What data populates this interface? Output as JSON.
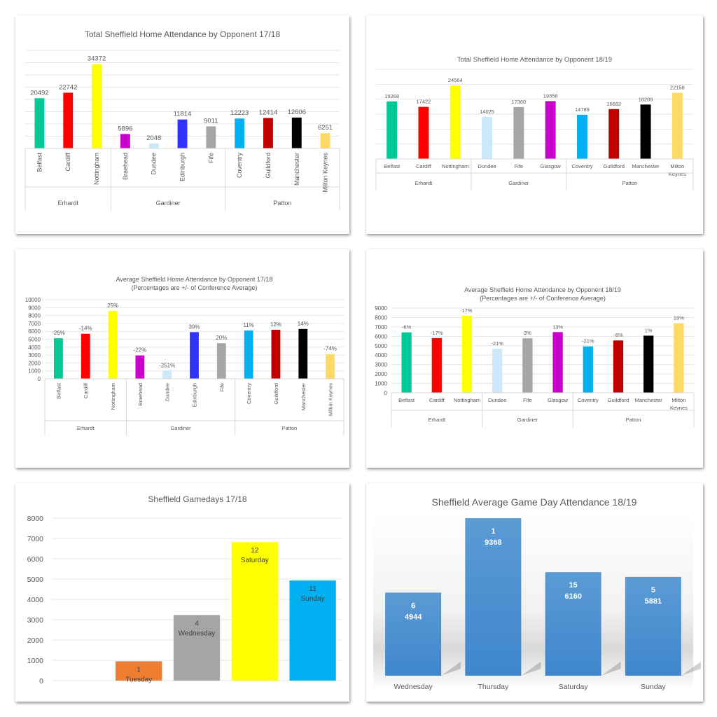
{
  "chart_data": [
    {
      "id": "total-1718",
      "type": "bar",
      "title": "Total Sheffield Home Attendance by Opponent 17/18",
      "subtitle": "",
      "xlabel": "",
      "ylabel": "",
      "ylim": [
        0,
        40000
      ],
      "grid": true,
      "show_y_ticks": false,
      "label_orientation": "vertical",
      "groups": [
        {
          "name": "Erhardt",
          "categories": [
            "Belfast",
            "Cardiff",
            "Nottingham"
          ]
        },
        {
          "name": "Gardiner",
          "categories": [
            "Braehead",
            "Dundee",
            "Edinburgh",
            "Fife"
          ]
        },
        {
          "name": "Patton",
          "categories": [
            "Coventry",
            "Guildford",
            "Manchester",
            "Milton Keynes"
          ]
        }
      ],
      "categories": [
        "Belfast",
        "Cardiff",
        "Nottingham",
        "Braehead",
        "Dundee",
        "Edinburgh",
        "Fife",
        "Coventry",
        "Guildford",
        "Manchester",
        "Milton Keynes"
      ],
      "values": [
        20492,
        22742,
        34372,
        5896,
        2048,
        11814,
        9011,
        12223,
        12414,
        12606,
        6251
      ],
      "data_labels": [
        "20492",
        "22742",
        "34372",
        "5896",
        "2048",
        "11814",
        "9011",
        "12223",
        "12414",
        "12606",
        "6251"
      ],
      "colors": [
        "#00c896",
        "#ff0000",
        "#ffff00",
        "#cc00cc",
        "#cce8fa",
        "#3333ff",
        "#a6a6a6",
        "#00b0f0",
        "#c00000",
        "#000000",
        "#ffd966"
      ]
    },
    {
      "id": "total-1819",
      "type": "bar",
      "title": "Total Sheffield Home Attendance by Opponent 18/19",
      "subtitle": "",
      "xlabel": "",
      "ylabel": "",
      "ylim": [
        0,
        30000
      ],
      "grid": true,
      "show_y_ticks": false,
      "label_orientation": "horizontal",
      "groups": [
        {
          "name": "Erhardt",
          "categories": [
            "Belfast",
            "Cardiff",
            "Nottingham"
          ]
        },
        {
          "name": "Gardiner",
          "categories": [
            "Dundee",
            "Fife",
            "Glasgow"
          ]
        },
        {
          "name": "Patton",
          "categories": [
            "Coventry",
            "Guildford",
            "Manchester",
            "Milton Keynes"
          ]
        }
      ],
      "categories": [
        "Belfast",
        "Cardiff",
        "Nottingham",
        "Dundee",
        "Fife",
        "Glasgow",
        "Coventry",
        "Guildford",
        "Manchester",
        "Milton Keynes"
      ],
      "values": [
        19268,
        17422,
        24564,
        14025,
        17360,
        19358,
        14789,
        16682,
        18209,
        22158
      ],
      "data_labels": [
        "19268",
        "17422",
        "24564",
        "14025",
        "17360",
        "19358",
        "14789",
        "16682",
        "18209",
        "22158"
      ],
      "colors": [
        "#00c896",
        "#ff0000",
        "#ffff00",
        "#cce8fa",
        "#a6a6a6",
        "#cc00cc",
        "#00b0f0",
        "#c00000",
        "#000000",
        "#ffd966"
      ]
    },
    {
      "id": "avg-1718",
      "type": "bar",
      "title": "Average Sheffield Home Attendance by Opponent 17/18",
      "subtitle": "(Percentages are +/- of Conference Average)",
      "xlabel": "",
      "ylabel": "",
      "ylim": [
        0,
        10000
      ],
      "yticks": [
        0,
        1000,
        2000,
        3000,
        4000,
        5000,
        6000,
        7000,
        8000,
        9000,
        10000
      ],
      "grid": true,
      "show_y_ticks": true,
      "label_orientation": "vertical",
      "groups": [
        {
          "name": "Erhardt",
          "categories": [
            "Belfast",
            "Cardiff",
            "Nottingham"
          ]
        },
        {
          "name": "Gardiner",
          "categories": [
            "Braehead",
            "Dundee",
            "Edinburgh",
            "Fife"
          ]
        },
        {
          "name": "Patton",
          "categories": [
            "Coventry",
            "Guildford",
            "Manchester",
            "Milton Keynes"
          ]
        }
      ],
      "categories": [
        "Belfast",
        "Cardiff",
        "Nottingham",
        "Braehead",
        "Dundee",
        "Edinburgh",
        "Fife",
        "Coventry",
        "Guildford",
        "Manchester",
        "Milton Keynes"
      ],
      "values": [
        5120,
        5690,
        8590,
        2950,
        1020,
        5900,
        4500,
        6110,
        6200,
        6300,
        3130
      ],
      "data_labels": [
        "-26%",
        "-14%",
        "25%",
        "-22%",
        "-251%",
        "39%",
        "20%",
        "11%",
        "12%",
        "14%",
        "-74%"
      ],
      "colors": [
        "#00c896",
        "#ff0000",
        "#ffff00",
        "#cc00cc",
        "#cce8fa",
        "#3333ff",
        "#a6a6a6",
        "#00b0f0",
        "#c00000",
        "#000000",
        "#ffd966"
      ]
    },
    {
      "id": "avg-1819",
      "type": "bar",
      "title": "Average Sheffield Home Attendance by Opponent 18/19",
      "subtitle": "(Percentages are +/- of Conference Average)",
      "xlabel": "",
      "ylabel": "",
      "ylim": [
        0,
        9000
      ],
      "yticks": [
        0,
        1000,
        2000,
        3000,
        4000,
        5000,
        6000,
        7000,
        8000,
        9000
      ],
      "grid": true,
      "show_y_ticks": true,
      "label_orientation": "horizontal",
      "groups": [
        {
          "name": "Erhardt",
          "categories": [
            "Belfast",
            "Cardiff",
            "Nottingham"
          ]
        },
        {
          "name": "Gardiner",
          "categories": [
            "Dundee",
            "Fife",
            "Glasgow"
          ]
        },
        {
          "name": "Patton",
          "categories": [
            "Coventry",
            "Guildford",
            "Manchester",
            "Milton Keynes"
          ]
        }
      ],
      "categories": [
        "Belfast",
        "Cardiff",
        "Nottingham",
        "Dundee",
        "Fife",
        "Glasgow",
        "Coventry",
        "Guildford",
        "Manchester",
        "Milton Keynes"
      ],
      "values": [
        6420,
        5810,
        8190,
        4680,
        5790,
        6450,
        4930,
        5560,
        6070,
        7390
      ],
      "data_labels": [
        "-6%",
        "-17%",
        "17%",
        "-21%",
        "3%",
        "13%",
        "-21%",
        "-8%",
        "1%",
        "19%"
      ],
      "colors": [
        "#00c896",
        "#ff0000",
        "#ffff00",
        "#cce8fa",
        "#a6a6a6",
        "#cc00cc",
        "#00b0f0",
        "#c00000",
        "#000000",
        "#ffd966"
      ]
    },
    {
      "id": "gamedays-1718",
      "type": "bar",
      "title": "Sheffield Gamedays 17/18",
      "xlabel": "",
      "ylabel": "",
      "ylim": [
        0,
        8000
      ],
      "yticks": [
        0,
        1000,
        2000,
        3000,
        4000,
        5000,
        6000,
        7000,
        8000
      ],
      "grid": true,
      "categories": [
        "",
        "Tuesday",
        "Wednesday",
        "Saturday",
        "Sunday"
      ],
      "values": [
        null,
        950,
        3230,
        6820,
        4930
      ],
      "games": [
        null,
        1,
        4,
        12,
        11
      ],
      "colors": [
        "#ffffff",
        "#ed7d31",
        "#a5a5a5",
        "#ffff00",
        "#00b0f0"
      ]
    },
    {
      "id": "gameday-avg-1819",
      "type": "bar",
      "title": "Sheffield Average Game Day Attendance 18/19",
      "xlabel": "",
      "ylabel": "",
      "ylim": [
        0,
        10000
      ],
      "grid": false,
      "categories": [
        "Wednesday",
        "Thursday",
        "Saturday",
        "Sunday"
      ],
      "values": [
        4944,
        9368,
        6160,
        5881
      ],
      "games": [
        6,
        1,
        15,
        5
      ],
      "colors": [
        "#5b9bd5"
      ]
    }
  ]
}
